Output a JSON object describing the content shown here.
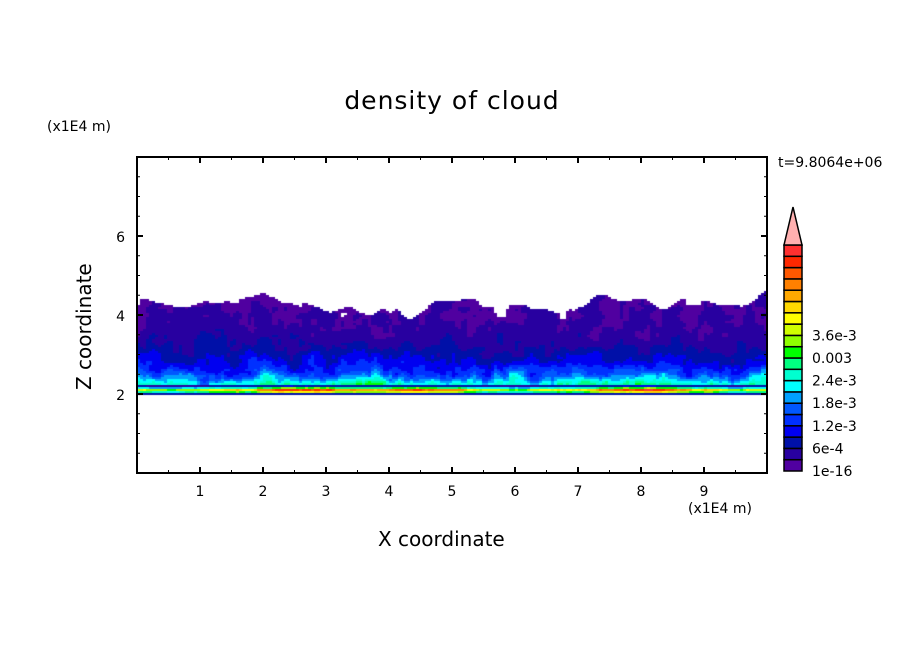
{
  "chart_data": {
    "type": "heatmap",
    "subtype": "filled-contour",
    "title": "density of cloud",
    "xlabel": "X coordinate",
    "ylabel": "Z coordinate",
    "x_unit": "(x1E4 m)",
    "y_unit": "(x1E4 m)",
    "xlim": [
      0,
      10
    ],
    "ylim": [
      0,
      8
    ],
    "x_ticks": [
      1,
      2,
      3,
      4,
      5,
      6,
      7,
      8,
      9
    ],
    "y_ticks": [
      2,
      4,
      6
    ],
    "time_label": "t=9.8064e+06",
    "colorbar": {
      "labels": [
        "1e-16",
        "6e-4",
        "1.2e-3",
        "1.8e-3",
        "2.4e-3",
        "0.003",
        "3.6e-3"
      ],
      "label_box_index": [
        0,
        2,
        4,
        6,
        8,
        10,
        12
      ],
      "colors": [
        "#5000a0",
        "#2800a0",
        "#0010a8",
        "#0000f0",
        "#0030ff",
        "#0058ff",
        "#00a0ff",
        "#00ffff",
        "#00ffd0",
        "#00ff80",
        "#00ff00",
        "#90ff00",
        "#d0ff00",
        "#ffff00",
        "#ffd800",
        "#ffa800",
        "#ff8000",
        "#ff5800",
        "#ff2800",
        "#ff3030"
      ],
      "overflow_color": "#ffb0b0"
    },
    "grid": false
  }
}
